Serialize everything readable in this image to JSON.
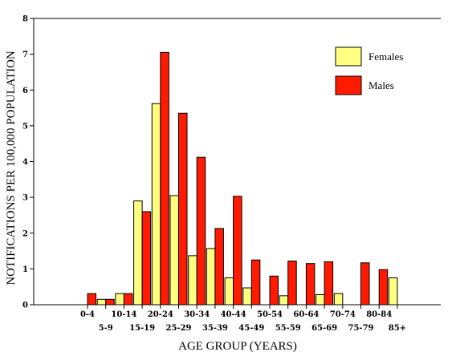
{
  "chart_data": {
    "type": "bar",
    "title": "",
    "xlabel": "AGE GROUP (YEARS)",
    "ylabel": "NOTIFICATIONS PER 100,000 POPULATION",
    "ylim": [
      0,
      8
    ],
    "yticks": [
      0,
      1,
      2,
      3,
      4,
      5,
      6,
      7,
      8
    ],
    "grid": false,
    "legend_position": "top-right",
    "categories": [
      "0-4",
      "5-9",
      "10-14",
      "15-19",
      "20-24",
      "25-29",
      "30-34",
      "35-39",
      "40-44",
      "45-49",
      "50-54",
      "55-59",
      "60-64",
      "65-69",
      "70-74",
      "75-79",
      "80-84",
      "85+"
    ],
    "series": [
      {
        "name": "Females",
        "color": "#ffff80",
        "values": [
          0,
          0.15,
          0.31,
          2.9,
          5.62,
          3.05,
          1.37,
          1.57,
          0.75,
          0.47,
          0,
          0.25,
          0,
          0.28,
          0.31,
          0,
          0,
          0.75
        ]
      },
      {
        "name": "Males",
        "color": "#ff1a00",
        "values": [
          0.31,
          0.15,
          0.31,
          2.6,
          7.05,
          5.35,
          4.12,
          2.13,
          3.03,
          1.25,
          0.8,
          1.22,
          1.15,
          1.2,
          0,
          1.17,
          0.98,
          0
        ]
      }
    ]
  }
}
